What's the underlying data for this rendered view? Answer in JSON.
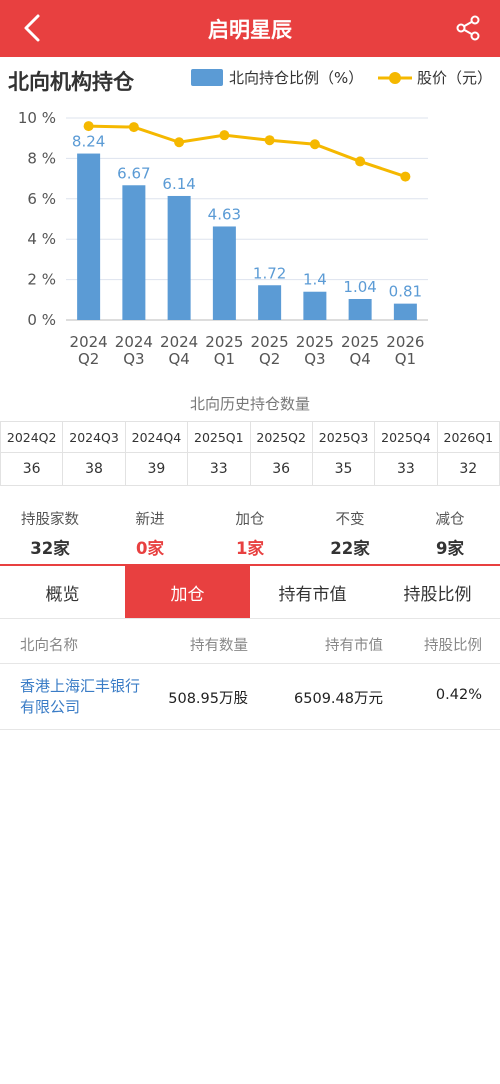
{
  "header": {
    "title": "启明星辰"
  },
  "chart_section": {
    "title": "北向机构持仓",
    "legend_bar": "北向持仓比例（%）",
    "legend_line": "股价（元）"
  },
  "chart_data": {
    "type": "bar",
    "categories": [
      "2024 Q2",
      "2024 Q3",
      "2024 Q4",
      "2025 Q1",
      "2025 Q2",
      "2025 Q3",
      "2025 Q4",
      "2026 Q1"
    ],
    "category_lines": [
      [
        "2024",
        "Q2"
      ],
      [
        "2024",
        "Q3"
      ],
      [
        "2024",
        "Q4"
      ],
      [
        "2025",
        "Q1"
      ],
      [
        "2025",
        "Q2"
      ],
      [
        "2025",
        "Q3"
      ],
      [
        "2025",
        "Q4"
      ],
      [
        "2026",
        "Q1"
      ]
    ],
    "series": [
      {
        "name": "北向持仓比例（%）",
        "type": "bar",
        "color": "#5b9bd5",
        "values": [
          8.24,
          6.67,
          6.14,
          4.63,
          1.72,
          1.4,
          1.04,
          0.81
        ],
        "labels": [
          "8.24",
          "6.67",
          "6.14",
          "4.63",
          "1.72",
          "1.4",
          "1.04",
          "0.81"
        ]
      },
      {
        "name": "股价（元）",
        "type": "line",
        "color": "#f5b800",
        "values": [
          9.6,
          9.55,
          8.8,
          9.15,
          8.9,
          8.7,
          7.85,
          7.1
        ]
      }
    ],
    "yticks": [
      "0 %",
      "2 %",
      "4 %",
      "6 %",
      "8 %",
      "10 %"
    ],
    "ylim": [
      0,
      10
    ],
    "grid": true
  },
  "history": {
    "caption": "北向历史持仓数量",
    "quarters": [
      "2024Q2",
      "2024Q3",
      "2024Q4",
      "2025Q1",
      "2025Q2",
      "2025Q3",
      "2025Q4",
      "2026Q1"
    ],
    "counts": [
      "36",
      "38",
      "39",
      "33",
      "36",
      "35",
      "33",
      "32"
    ]
  },
  "stats": [
    {
      "label": "持股家数",
      "value": "32家",
      "highlight": false
    },
    {
      "label": "新进",
      "value": "0家",
      "highlight": true
    },
    {
      "label": "加仓",
      "value": "1家",
      "highlight": true
    },
    {
      "label": "不变",
      "value": "22家",
      "highlight": false
    },
    {
      "label": "减仓",
      "value": "9家",
      "highlight": false
    }
  ],
  "tabs": [
    {
      "label": "概览",
      "active": false
    },
    {
      "label": "加仓",
      "active": true
    },
    {
      "label": "持有市值",
      "active": false
    },
    {
      "label": "持股比例",
      "active": false
    }
  ],
  "list": {
    "headers": [
      "北向名称",
      "持有数量",
      "持有市值",
      "持股比例"
    ],
    "rows": [
      {
        "name": "香港上海汇丰银行有限公司",
        "qty": "508.95万股",
        "value": "6509.48万元",
        "pct": "0.42%"
      }
    ]
  },
  "colors": {
    "accent": "#e84040",
    "bar": "#5b9bd5",
    "line": "#f5b800",
    "link": "#3a7cc6"
  },
  "icons": {
    "back": "chevron-left-icon",
    "share": "share-icon"
  }
}
